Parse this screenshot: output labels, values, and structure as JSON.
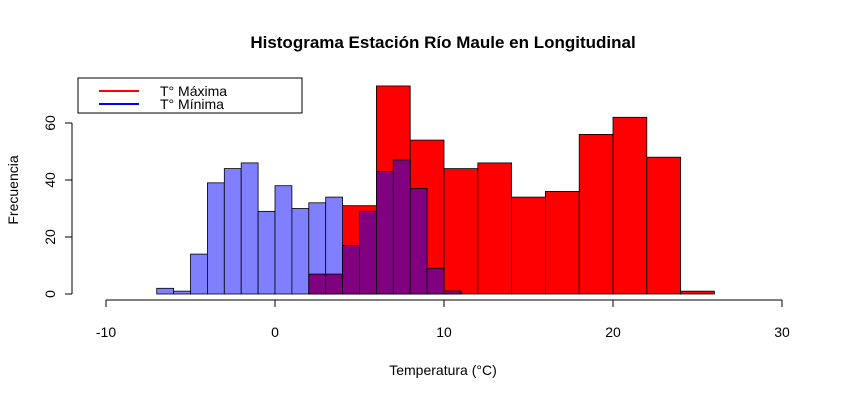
{
  "chart_data": {
    "type": "bar",
    "title": "Histograma Estación Río Maule en Longitudinal",
    "xlabel": "Temperatura (°C)",
    "ylabel": "Frecuencia",
    "xlim": [
      -10,
      30
    ],
    "ylim": [
      0,
      75
    ],
    "x_ticks": [
      -10,
      0,
      10,
      20,
      30
    ],
    "y_ticks": [
      0,
      20,
      40,
      60
    ],
    "grid": false,
    "legend_position": "top-left",
    "legend": [
      {
        "label": "T° Máxima",
        "color": "#ff0000"
      },
      {
        "label": "T° Mínima",
        "color": "#0000ff"
      }
    ],
    "series": [
      {
        "name": "T° Máxima",
        "color": "#ff0000",
        "bin_edges": [
          2,
          4,
          6,
          8,
          10,
          12,
          14,
          16,
          18,
          20,
          22,
          24,
          26
        ],
        "counts": [
          7,
          31,
          73,
          54,
          44,
          46,
          34,
          36,
          56,
          62,
          48,
          1
        ]
      },
      {
        "name": "T° Mínima",
        "color": "#8080ff",
        "bin_edges": [
          -7,
          -6,
          -5,
          -4,
          -3,
          -2,
          -1,
          0,
          1,
          2,
          3,
          4,
          5,
          6,
          7,
          8,
          9,
          10,
          11
        ],
        "counts": [
          2,
          1,
          14,
          39,
          44,
          46,
          29,
          38,
          30,
          32,
          34,
          17,
          29,
          43,
          47,
          37,
          9,
          1
        ]
      }
    ],
    "overlap_color": "#800080"
  }
}
